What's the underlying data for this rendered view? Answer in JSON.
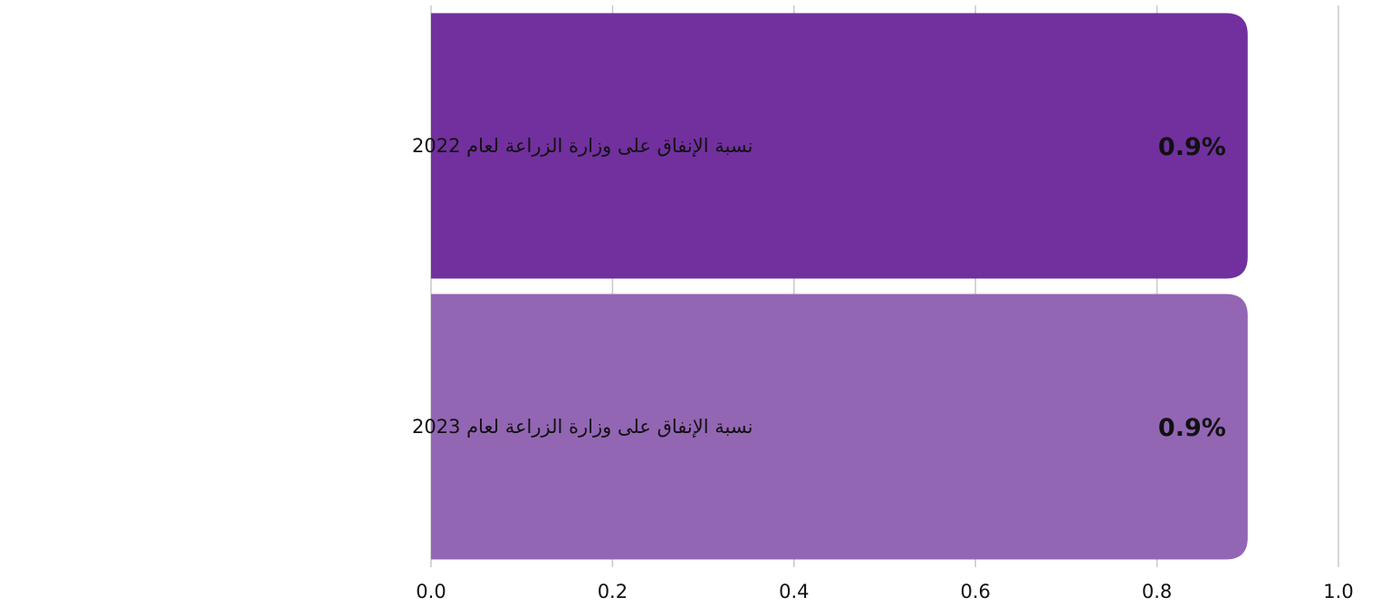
{
  "chart_data": {
    "type": "bar",
    "orientation": "horizontal",
    "categories": [
      "نسبة الإنفاق على وزارة الزراعة لعام 2022",
      "نسبة الإنفاق على وزارة الزراعة لعام 2023"
    ],
    "values": [
      0.9,
      0.9
    ],
    "data_labels": [
      "0.9%",
      "0.9%"
    ],
    "bar_colors": [
      "#71309e",
      "#9366b4"
    ],
    "xlim": [
      0.0,
      1.0
    ],
    "xticks": [
      0.0,
      0.2,
      0.4,
      0.6,
      0.8,
      1.0
    ],
    "xtick_labels": [
      "0.0",
      "0.2",
      "0.4",
      "0.6",
      "0.8",
      "1.0"
    ],
    "grid": true
  }
}
